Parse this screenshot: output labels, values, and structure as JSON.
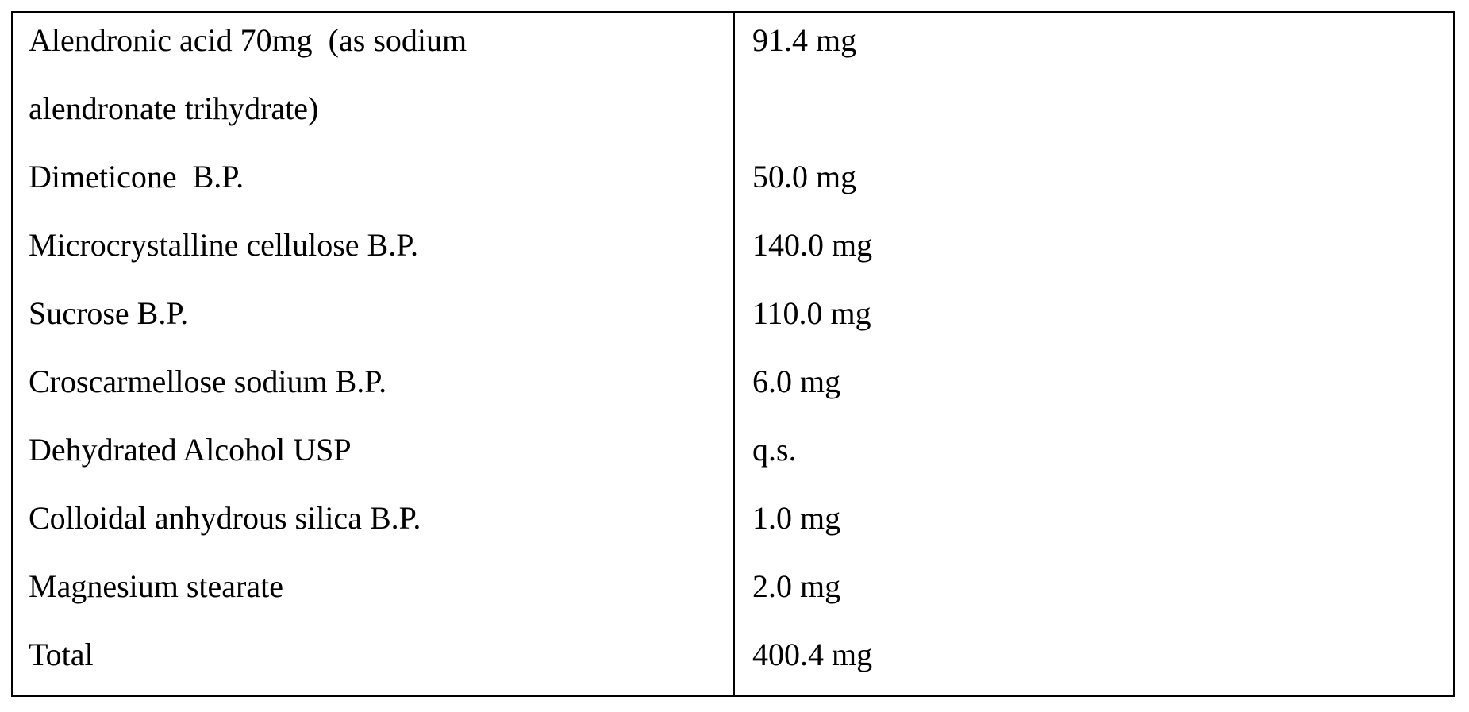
{
  "table": {
    "rows": [
      {
        "ingredient": [
          "Alendronic acid 70mg  (as sodium",
          "alendronate trihydrate)"
        ],
        "amount": "91.4 mg"
      },
      {
        "ingredient": [
          "Dimeticone  B.P."
        ],
        "amount": "50.0 mg"
      },
      {
        "ingredient": [
          "Microcrystalline cellulose B.P."
        ],
        "amount": "140.0 mg"
      },
      {
        "ingredient": [
          "Sucrose B.P."
        ],
        "amount": "110.0 mg"
      },
      {
        "ingredient": [
          "Croscarmellose sodium B.P."
        ],
        "amount": "6.0 mg"
      },
      {
        "ingredient": [
          "Dehydrated Alcohol USP"
        ],
        "amount": "q.s."
      },
      {
        "ingredient": [
          "Colloidal anhydrous silica B.P."
        ],
        "amount": "1.0 mg"
      },
      {
        "ingredient": [
          "Magnesium stearate"
        ],
        "amount": "2.0 mg"
      },
      {
        "ingredient": [
          "Total"
        ],
        "amount": "400.4 mg"
      }
    ]
  }
}
